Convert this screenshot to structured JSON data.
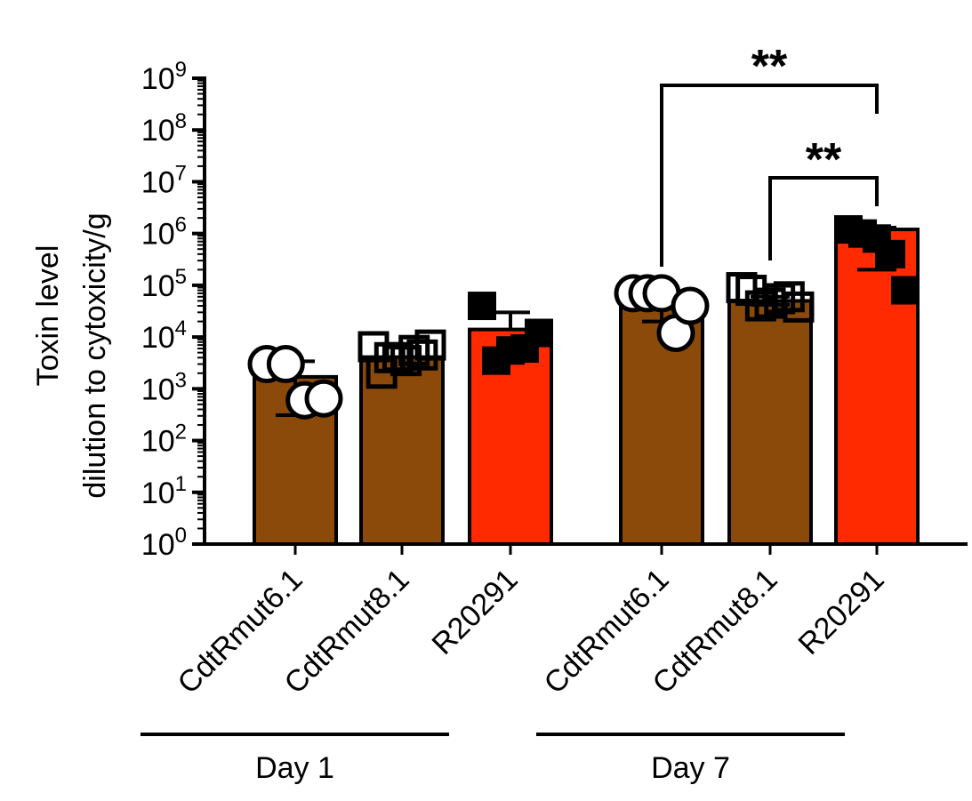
{
  "chart_data": {
    "type": "bar",
    "y_scale": "log10",
    "ylim": [
      1,
      1000000000
    ],
    "ylabel_line1": "Toxin level",
    "ylabel_line2": "dilution to cytoxicity/g",
    "y_ticks": [
      {
        "exp": 0,
        "base": "10",
        "sup": "0"
      },
      {
        "exp": 1,
        "base": "10",
        "sup": "1"
      },
      {
        "exp": 2,
        "base": "10",
        "sup": "2"
      },
      {
        "exp": 3,
        "base": "10",
        "sup": "3"
      },
      {
        "exp": 4,
        "base": "10",
        "sup": "4"
      },
      {
        "exp": 5,
        "base": "10",
        "sup": "5"
      },
      {
        "exp": 6,
        "base": "10",
        "sup": "6"
      },
      {
        "exp": 7,
        "base": "10",
        "sup": "7"
      },
      {
        "exp": 8,
        "base": "10",
        "sup": "8"
      },
      {
        "exp": 9,
        "base": "10",
        "sup": "9"
      }
    ],
    "groups": [
      {
        "label": "Day 1",
        "bars": [
          {
            "category": "CdtRmut6.1",
            "value": 1700,
            "error_low": 310,
            "error_high": 3400,
            "color": "#8B4A0A",
            "marker": "open-circle",
            "points": [
              3000,
              3000,
              600,
              650
            ]
          },
          {
            "category": "CdtRmut8.1",
            "value": 4100,
            "error_low": 2400,
            "error_high": 6300,
            "color": "#8B4A0A",
            "marker": "open-square",
            "points": [
              6500,
              2000,
              4000,
              4000,
              3500,
              5500,
              4500,
              7000
            ]
          },
          {
            "category": "R20291",
            "value": 14000,
            "error_low": 0,
            "error_high": 30000,
            "color": "#FF2A00",
            "marker": "filled-square",
            "points": [
              40000,
              3500,
              5500,
              6000,
              12000
            ]
          }
        ]
      },
      {
        "label": "Day 7",
        "bars": [
          {
            "category": "CdtRmut6.1",
            "value": 45000,
            "error_low": 20000,
            "error_high": 70000,
            "color": "#8B4A0A",
            "marker": "open-circle",
            "points": [
              70000,
              70000,
              70000,
              12000,
              40000
            ]
          },
          {
            "category": "CdtRmut8.1",
            "value": 50000,
            "error_low": 42000,
            "error_high": 60000,
            "color": "#8B4A0A",
            "marker": "open-square",
            "points": [
              90000,
              80000,
              40000,
              45000,
              55000,
              60000,
              38000
            ]
          },
          {
            "category": "R20291",
            "value": 1200000,
            "error_low": 200000,
            "error_high": 1300000,
            "color": "#FF2A00",
            "marker": "filled-square",
            "points": [
              1200000,
              1000000,
              800000,
              400000,
              80000
            ]
          }
        ]
      }
    ],
    "significance": [
      {
        "from_group": 1,
        "from_bar": 0,
        "to_group": 1,
        "to_bar": 2,
        "label": "**"
      },
      {
        "from_group": 1,
        "from_bar": 1,
        "to_group": 1,
        "to_bar": 2,
        "label": "**"
      }
    ]
  }
}
